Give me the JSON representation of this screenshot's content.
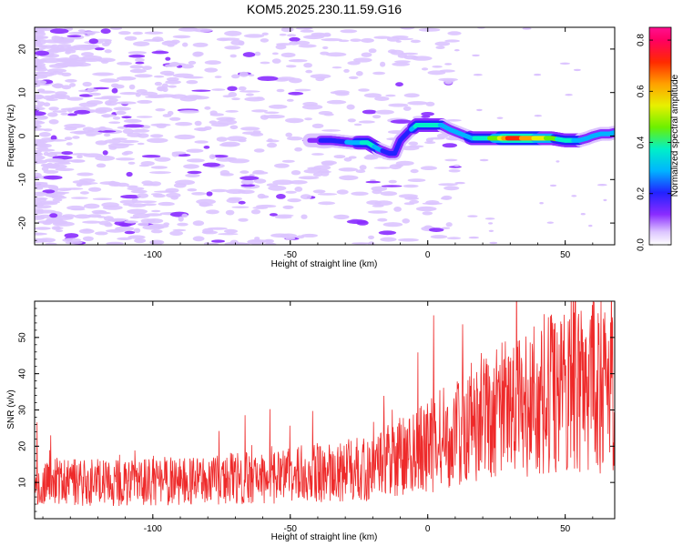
{
  "figure_title": "KOM5.2025.230.11.59.G16",
  "chart_data": [
    {
      "type": "heatmap",
      "title": "KOM5.2025.230.11.59.G16",
      "xlabel": "Height of straight line (km)",
      "ylabel": "Frequency (Hz)",
      "xlim": [
        -143,
        68
      ],
      "ylim": [
        -25,
        25
      ],
      "xticks": [
        -100,
        -50,
        0,
        50
      ],
      "xtick_labels": [
        "-100",
        "-50",
        "0",
        "50"
      ],
      "yticks": [
        -20,
        -10,
        0,
        10,
        20
      ],
      "ytick_labels": [
        "-20",
        "-10",
        "0",
        "10",
        "20"
      ],
      "colorbar": {
        "label": "Normalized spectral amplitude",
        "range": [
          0,
          0.85
        ],
        "ticks": [
          0,
          0.2,
          0.4,
          0.6,
          0.8
        ],
        "tick_labels": [
          "0.0",
          "0.2",
          "0.4",
          "0.6",
          "0.8"
        ]
      },
      "ridge": {
        "description": "dominant frequency ridge",
        "x": [
          -43,
          -35,
          -28,
          -22,
          -18,
          -14,
          -12,
          -10,
          -7,
          -4,
          -1,
          2,
          5,
          8,
          12,
          16,
          20,
          25,
          30,
          35,
          40,
          45,
          50,
          55,
          58,
          60,
          63,
          66,
          68
        ],
        "frequency": [
          -1,
          -1,
          -1.5,
          -1.5,
          -3,
          -4,
          -4,
          -1,
          1,
          2.5,
          2.5,
          2.5,
          2.5,
          1.5,
          0.5,
          -0.5,
          -0.5,
          -0.5,
          -0.5,
          -0.5,
          -0.5,
          -0.5,
          -1,
          -1,
          -0.5,
          0,
          0.5,
          0.5,
          0.8
        ],
        "amplitude": [
          0.15,
          0.25,
          0.3,
          0.4,
          0.35,
          0.2,
          0.2,
          0.2,
          0.25,
          0.4,
          0.45,
          0.45,
          0.35,
          0.3,
          0.3,
          0.35,
          0.42,
          0.5,
          0.75,
          0.7,
          0.6,
          0.5,
          0.4,
          0.35,
          0.3,
          0.3,
          0.3,
          0.3,
          0.3
        ]
      }
    },
    {
      "type": "line",
      "xlabel": "Height of straight line (km)",
      "ylabel": "SNR (v/v)",
      "xlim": [
        -143,
        68
      ],
      "ylim": [
        0,
        60
      ],
      "xticks": [
        -100,
        -50,
        0,
        50
      ],
      "xtick_labels": [
        "-100",
        "-50",
        "0",
        "50"
      ],
      "yticks": [
        10,
        20,
        30,
        40,
        50
      ],
      "ytick_labels": [
        "10",
        "20",
        "30",
        "40",
        "50"
      ],
      "series": [
        {
          "name": "SNR",
          "color": "#ee2a2a",
          "trend_x": [
            -143,
            -100,
            -50,
            -20,
            0,
            20,
            40,
            60,
            68
          ],
          "trend_mean": [
            10,
            10,
            12,
            14,
            20,
            28,
            34,
            36,
            34
          ]
        }
      ]
    }
  ]
}
